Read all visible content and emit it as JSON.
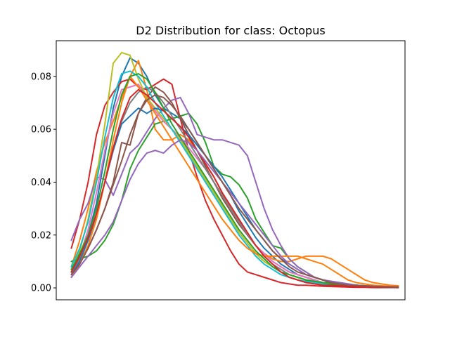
{
  "chart_data": {
    "type": "line",
    "title": "D2 Distribution for class: Octopus",
    "xlabel": "",
    "ylabel": "",
    "x_ticks_shown": false,
    "x": [
      0,
      1,
      2,
      3,
      4,
      5,
      6,
      7,
      8,
      9,
      10,
      11,
      12,
      13,
      14,
      15,
      16,
      17,
      18,
      19,
      20,
      21,
      22,
      23,
      24,
      25,
      26,
      27,
      28,
      29,
      30,
      31,
      32,
      33,
      34,
      35,
      36,
      37,
      38,
      39
    ],
    "xlim": [
      -1.8,
      39.8
    ],
    "ylim": [
      -0.0045,
      0.0935
    ],
    "yticks": [
      0.0,
      0.02,
      0.04,
      0.06,
      0.08
    ],
    "ytick_labels": [
      "0.00",
      "0.02",
      "0.04",
      "0.06",
      "0.08"
    ],
    "grid": false,
    "legend": "none",
    "series": [
      {
        "color": "#1f77b4",
        "values": [
          0.007,
          0.012,
          0.02,
          0.032,
          0.05,
          0.068,
          0.08,
          0.087,
          0.085,
          0.08,
          0.073,
          0.068,
          0.066,
          0.064,
          0.06,
          0.055,
          0.05,
          0.045,
          0.04,
          0.035,
          0.029,
          0.024,
          0.019,
          0.015,
          0.012,
          0.009,
          0.007,
          0.005,
          0.004,
          0.003,
          0.002,
          0.002,
          0.0015,
          0.001,
          0.001,
          0.0008,
          0.0006,
          0.0005,
          0.0004,
          0.0003
        ]
      },
      {
        "color": "#ff7f0e",
        "values": [
          0.008,
          0.018,
          0.03,
          0.044,
          0.055,
          0.063,
          0.072,
          0.08,
          0.086,
          0.075,
          0.06,
          0.056,
          0.056,
          0.058,
          0.056,
          0.052,
          0.047,
          0.042,
          0.036,
          0.03,
          0.025,
          0.02,
          0.016,
          0.013,
          0.011,
          0.01,
          0.01,
          0.011,
          0.012,
          0.012,
          0.012,
          0.011,
          0.009,
          0.007,
          0.005,
          0.003,
          0.002,
          0.0015,
          0.001,
          0.0008
        ]
      },
      {
        "color": "#2ca02c",
        "values": [
          0.01,
          0.011,
          0.012,
          0.014,
          0.018,
          0.024,
          0.033,
          0.045,
          0.052,
          0.057,
          0.062,
          0.063,
          0.064,
          0.065,
          0.066,
          0.062,
          0.055,
          0.046,
          0.043,
          0.042,
          0.039,
          0.034,
          0.026,
          0.021,
          0.016,
          0.015,
          0.011,
          0.008,
          0.006,
          0.004,
          0.003,
          0.002,
          0.0015,
          0.001,
          0.001,
          0.0008,
          0.0006,
          0.0005,
          0.0004,
          0.0003
        ]
      },
      {
        "color": "#d62728",
        "values": [
          0.015,
          0.026,
          0.04,
          0.058,
          0.069,
          0.074,
          0.078,
          0.079,
          0.076,
          0.075,
          0.077,
          0.079,
          0.077,
          0.064,
          0.052,
          0.042,
          0.033,
          0.026,
          0.02,
          0.014,
          0.009,
          0.006,
          0.005,
          0.004,
          0.003,
          0.002,
          0.0015,
          0.001,
          0.001,
          0.0008,
          0.0006,
          0.0005,
          0.0004,
          0.0003,
          0.0002,
          0.0002,
          0.0001,
          0.0001,
          0.0001,
          0.0001
        ]
      },
      {
        "color": "#9467bd",
        "values": [
          0.018,
          0.026,
          0.032,
          0.042,
          0.041,
          0.035,
          0.043,
          0.051,
          0.054,
          0.059,
          0.064,
          0.068,
          0.071,
          0.072,
          0.066,
          0.058,
          0.057,
          0.056,
          0.056,
          0.055,
          0.054,
          0.05,
          0.04,
          0.03,
          0.022,
          0.016,
          0.011,
          0.008,
          0.006,
          0.004,
          0.003,
          0.002,
          0.0015,
          0.001,
          0.001,
          0.0008,
          0.0006,
          0.0005,
          0.0004,
          0.0003
        ]
      },
      {
        "color": "#8c564b",
        "values": [
          0.006,
          0.01,
          0.015,
          0.022,
          0.03,
          0.04,
          0.055,
          0.054,
          0.066,
          0.072,
          0.076,
          0.074,
          0.07,
          0.064,
          0.058,
          0.052,
          0.046,
          0.04,
          0.034,
          0.029,
          0.024,
          0.02,
          0.016,
          0.013,
          0.01,
          0.008,
          0.006,
          0.005,
          0.004,
          0.003,
          0.002,
          0.0015,
          0.001,
          0.001,
          0.0008,
          0.0006,
          0.0005,
          0.0004,
          0.0003,
          0.0002
        ]
      },
      {
        "color": "#e377c2",
        "values": [
          0.005,
          0.012,
          0.022,
          0.036,
          0.052,
          0.066,
          0.075,
          0.076,
          0.077,
          0.072,
          0.067,
          0.063,
          0.06,
          0.057,
          0.053,
          0.049,
          0.045,
          0.04,
          0.035,
          0.03,
          0.025,
          0.02,
          0.016,
          0.013,
          0.01,
          0.008,
          0.006,
          0.005,
          0.004,
          0.003,
          0.002,
          0.0015,
          0.001,
          0.001,
          0.0008,
          0.0006,
          0.0005,
          0.0004,
          0.0003,
          0.0002
        ]
      },
      {
        "color": "#7f7f7f",
        "values": [
          0.006,
          0.011,
          0.018,
          0.027,
          0.04,
          0.053,
          0.063,
          0.07,
          0.074,
          0.076,
          0.074,
          0.07,
          0.065,
          0.06,
          0.055,
          0.05,
          0.045,
          0.04,
          0.035,
          0.03,
          0.025,
          0.02,
          0.016,
          0.012,
          0.009,
          0.007,
          0.005,
          0.004,
          0.003,
          0.0025,
          0.002,
          0.0015,
          0.001,
          0.001,
          0.0008,
          0.0006,
          0.0005,
          0.0004,
          0.0003,
          0.0002
        ]
      },
      {
        "color": "#bcbd22",
        "values": [
          0.006,
          0.014,
          0.026,
          0.042,
          0.062,
          0.085,
          0.089,
          0.088,
          0.079,
          0.072,
          0.068,
          0.064,
          0.06,
          0.056,
          0.051,
          0.046,
          0.041,
          0.036,
          0.031,
          0.026,
          0.021,
          0.017,
          0.013,
          0.01,
          0.008,
          0.006,
          0.005,
          0.004,
          0.003,
          0.0025,
          0.002,
          0.0015,
          0.001,
          0.001,
          0.0008,
          0.0006,
          0.0005,
          0.0004,
          0.0003,
          0.0002
        ]
      },
      {
        "color": "#17becf",
        "values": [
          0.008,
          0.015,
          0.025,
          0.04,
          0.057,
          0.072,
          0.081,
          0.082,
          0.08,
          0.076,
          0.07,
          0.065,
          0.06,
          0.055,
          0.05,
          0.045,
          0.04,
          0.035,
          0.03,
          0.025,
          0.02,
          0.016,
          0.012,
          0.009,
          0.007,
          0.005,
          0.004,
          0.003,
          0.0025,
          0.002,
          0.0015,
          0.001,
          0.001,
          0.0008,
          0.0006,
          0.0005,
          0.0004,
          0.0003,
          0.0002,
          0.0001
        ]
      },
      {
        "color": "#1f77b4",
        "values": [
          0.005,
          0.01,
          0.018,
          0.028,
          0.04,
          0.052,
          0.062,
          0.065,
          0.068,
          0.066,
          0.068,
          0.067,
          0.064,
          0.061,
          0.058,
          0.054,
          0.05,
          0.046,
          0.042,
          0.037,
          0.032,
          0.027,
          0.022,
          0.018,
          0.014,
          0.011,
          0.009,
          0.007,
          0.005,
          0.004,
          0.003,
          0.0025,
          0.002,
          0.0015,
          0.001,
          0.0008,
          0.0006,
          0.0005,
          0.0004,
          0.0003
        ]
      },
      {
        "color": "#ff7f0e",
        "values": [
          0.004,
          0.009,
          0.016,
          0.026,
          0.04,
          0.056,
          0.07,
          0.08,
          0.076,
          0.071,
          0.066,
          0.061,
          0.056,
          0.051,
          0.046,
          0.041,
          0.036,
          0.031,
          0.026,
          0.022,
          0.018,
          0.015,
          0.013,
          0.012,
          0.012,
          0.012,
          0.012,
          0.012,
          0.011,
          0.01,
          0.009,
          0.007,
          0.005,
          0.003,
          0.002,
          0.0015,
          0.001,
          0.0008,
          0.0006,
          0.0005
        ]
      },
      {
        "color": "#2ca02c",
        "values": [
          0.007,
          0.013,
          0.02,
          0.03,
          0.044,
          0.06,
          0.073,
          0.08,
          0.081,
          0.079,
          0.074,
          0.068,
          0.062,
          0.057,
          0.052,
          0.047,
          0.042,
          0.037,
          0.032,
          0.027,
          0.022,
          0.018,
          0.014,
          0.011,
          0.008,
          0.006,
          0.005,
          0.004,
          0.003,
          0.0025,
          0.002,
          0.0015,
          0.001,
          0.001,
          0.0008,
          0.0006,
          0.0005,
          0.0004,
          0.0003,
          0.0002
        ]
      },
      {
        "color": "#d62728",
        "values": [
          0.006,
          0.012,
          0.019,
          0.028,
          0.04,
          0.053,
          0.064,
          0.072,
          0.075,
          0.073,
          0.07,
          0.067,
          0.064,
          0.061,
          0.057,
          0.052,
          0.047,
          0.042,
          0.036,
          0.031,
          0.026,
          0.021,
          0.016,
          0.012,
          0.009,
          0.006,
          0.004,
          0.003,
          0.002,
          0.0015,
          0.001,
          0.001,
          0.0008,
          0.0006,
          0.0005,
          0.0004,
          0.0003,
          0.0002,
          0.0002,
          0.0001
        ]
      },
      {
        "color": "#9467bd",
        "values": [
          0.004,
          0.008,
          0.012,
          0.016,
          0.02,
          0.025,
          0.033,
          0.041,
          0.047,
          0.051,
          0.052,
          0.051,
          0.054,
          0.056,
          0.055,
          0.052,
          0.048,
          0.044,
          0.04,
          0.036,
          0.032,
          0.028,
          0.024,
          0.02,
          0.016,
          0.012,
          0.009,
          0.007,
          0.005,
          0.004,
          0.003,
          0.0025,
          0.002,
          0.0015,
          0.001,
          0.0008,
          0.0006,
          0.0005,
          0.0004,
          0.0003
        ]
      },
      {
        "color": "#8c564b",
        "values": [
          0.005,
          0.009,
          0.015,
          0.022,
          0.03,
          0.039,
          0.048,
          0.058,
          0.066,
          0.071,
          0.073,
          0.072,
          0.069,
          0.065,
          0.06,
          0.055,
          0.05,
          0.045,
          0.04,
          0.035,
          0.03,
          0.026,
          0.022,
          0.018,
          0.014,
          0.011,
          0.008,
          0.006,
          0.005,
          0.004,
          0.003,
          0.002,
          0.0015,
          0.001,
          0.001,
          0.0008,
          0.0006,
          0.0005,
          0.0004,
          0.0003
        ]
      }
    ]
  }
}
